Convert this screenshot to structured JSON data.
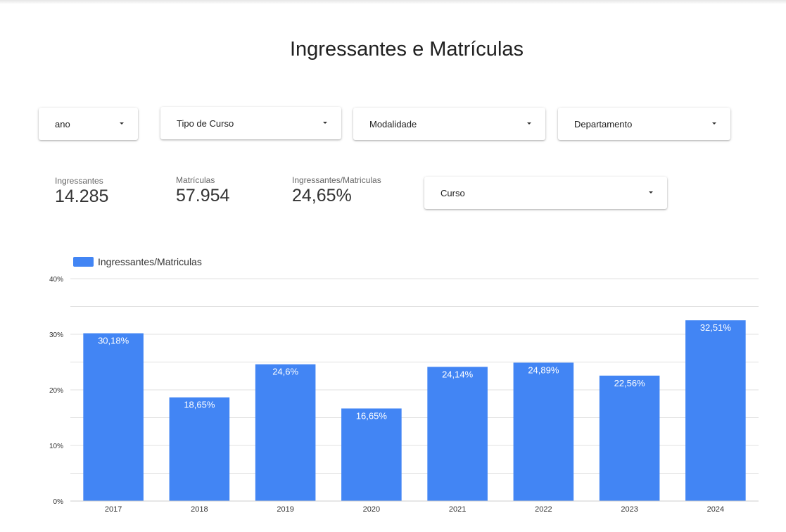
{
  "page_title": "Ingressantes e Matrículas",
  "filters": {
    "ano": "ano",
    "tipo_curso": "Tipo de Curso",
    "modalidade": "Modalidade",
    "departamento": "Departamento",
    "curso": "Curso"
  },
  "kpis": {
    "ingressantes": {
      "label": "Ingressantes",
      "value": "14.285"
    },
    "matriculas": {
      "label": "Matrículas",
      "value": "57.954"
    },
    "razao": {
      "label": "Ingressantes/Matriculas",
      "value": "24,65%"
    }
  },
  "colors": {
    "bar": "#4285f4",
    "grid": "#e0e0e0",
    "axis": "#cccccc"
  },
  "chart_data": {
    "type": "bar",
    "categories": [
      "2017",
      "2018",
      "2019",
      "2020",
      "2021",
      "2022",
      "2023",
      "2024"
    ],
    "series": [
      {
        "name": "Ingressantes/Matriculas",
        "values": [
          30.18,
          18.65,
          24.6,
          16.65,
          24.14,
          24.89,
          22.56,
          32.51
        ],
        "labels": [
          "30,18%",
          "18,65%",
          "24,6%",
          "16,65%",
          "24,14%",
          "24,89%",
          "22,56%",
          "32,51%"
        ]
      }
    ],
    "ylim": [
      0,
      40
    ],
    "yticks": [
      0,
      10,
      20,
      30,
      40
    ],
    "ytick_labels": [
      "0%",
      "10%",
      "20%",
      "30%",
      "40%"
    ],
    "grid": true,
    "legend_position": "top-left"
  }
}
